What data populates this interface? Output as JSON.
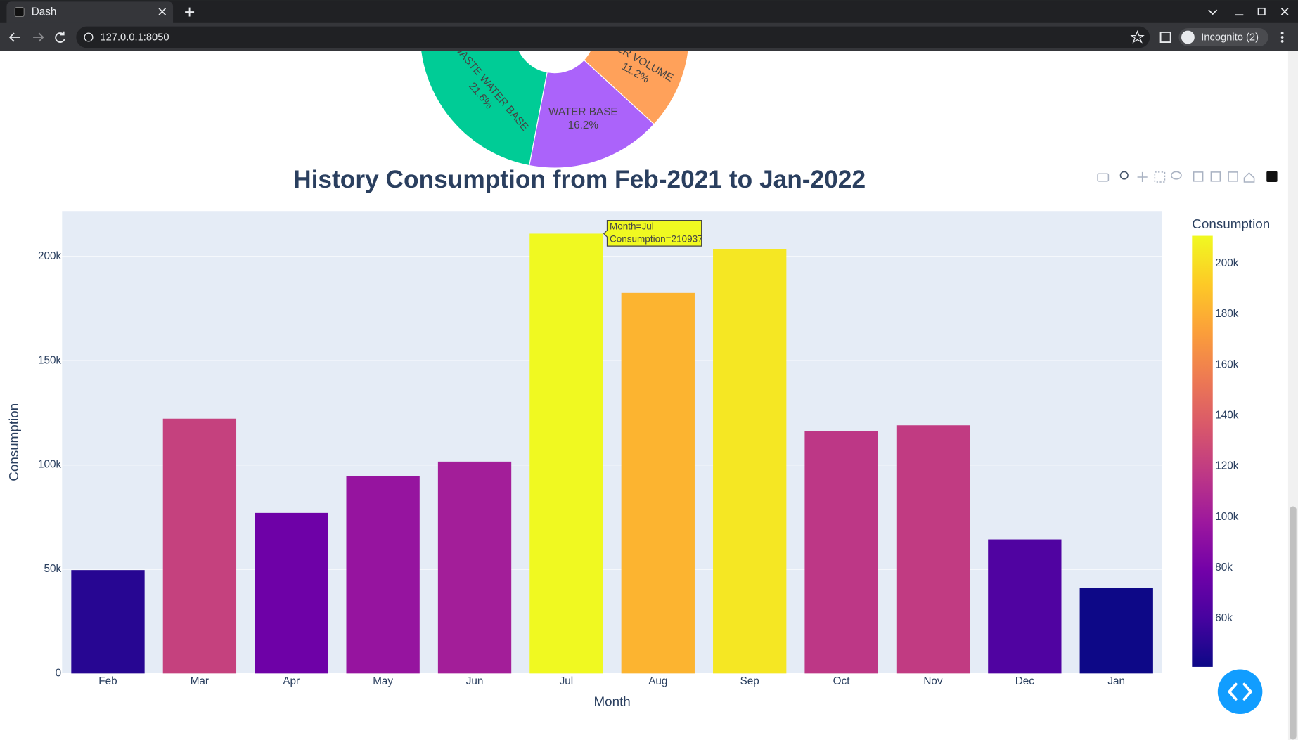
{
  "browser": {
    "tab_title": "Dash",
    "url": "127.0.0.1:8050",
    "profile": "Incognito (2)"
  },
  "chart_data": [
    {
      "type": "pie",
      "labels": [
        "TER VOLUME",
        "WATER BASE",
        "WASTE WATER BASE"
      ],
      "values": [
        11.2,
        16.2,
        21.6
      ],
      "value_labels": [
        "11.2%",
        "16.2%",
        "21.6%"
      ],
      "colors": [
        "#ffa15a",
        "#ab63fa",
        "#00cc96"
      ]
    },
    {
      "type": "bar",
      "title": "History Consumption from Feb-2021 to Jan-2022",
      "x_label": "Month",
      "y_label": "Consumption",
      "categories": [
        "Feb",
        "Mar",
        "Apr",
        "May",
        "Jun",
        "Jul",
        "Aug",
        "Sep",
        "Oct",
        "Nov",
        "Dec",
        "Jan"
      ],
      "values": [
        49600,
        122200,
        77000,
        94800,
        101600,
        210937,
        182500,
        203600,
        116300,
        119000,
        64300,
        40900
      ],
      "ylim": [
        0,
        221800
      ],
      "yticks": [
        0,
        {
          "value": 50000,
          "label": "50k"
        },
        {
          "value": 100000,
          "label": "100k"
        },
        {
          "value": 150000,
          "label": "150k"
        },
        {
          "value": 200000,
          "label": "200k"
        }
      ],
      "grid": true,
      "colorscale": [
        "#0d0887",
        "#46039f",
        "#7201a8",
        "#9c179e",
        "#bd3786",
        "#d8576b",
        "#ed7953",
        "#fb9f3a",
        "#fdca26",
        "#f0f921"
      ],
      "colorbar_title": "Consumption",
      "colorbar_lim": [
        40900,
        210937
      ],
      "colorbar_ticks": [
        {
          "value": 60000,
          "label": "60k"
        },
        {
          "value": 80000,
          "label": "80k"
        },
        {
          "value": 100000,
          "label": "100k"
        },
        {
          "value": 120000,
          "label": "120k"
        },
        {
          "value": 140000,
          "label": "140k"
        },
        {
          "value": 160000,
          "label": "160k"
        },
        {
          "value": 180000,
          "label": "180k"
        },
        {
          "value": 200000,
          "label": "200k"
        }
      ],
      "tooltip": {
        "category_index": 5,
        "lines": [
          "Month=Jul",
          "Consumption=210937"
        ]
      }
    }
  ]
}
